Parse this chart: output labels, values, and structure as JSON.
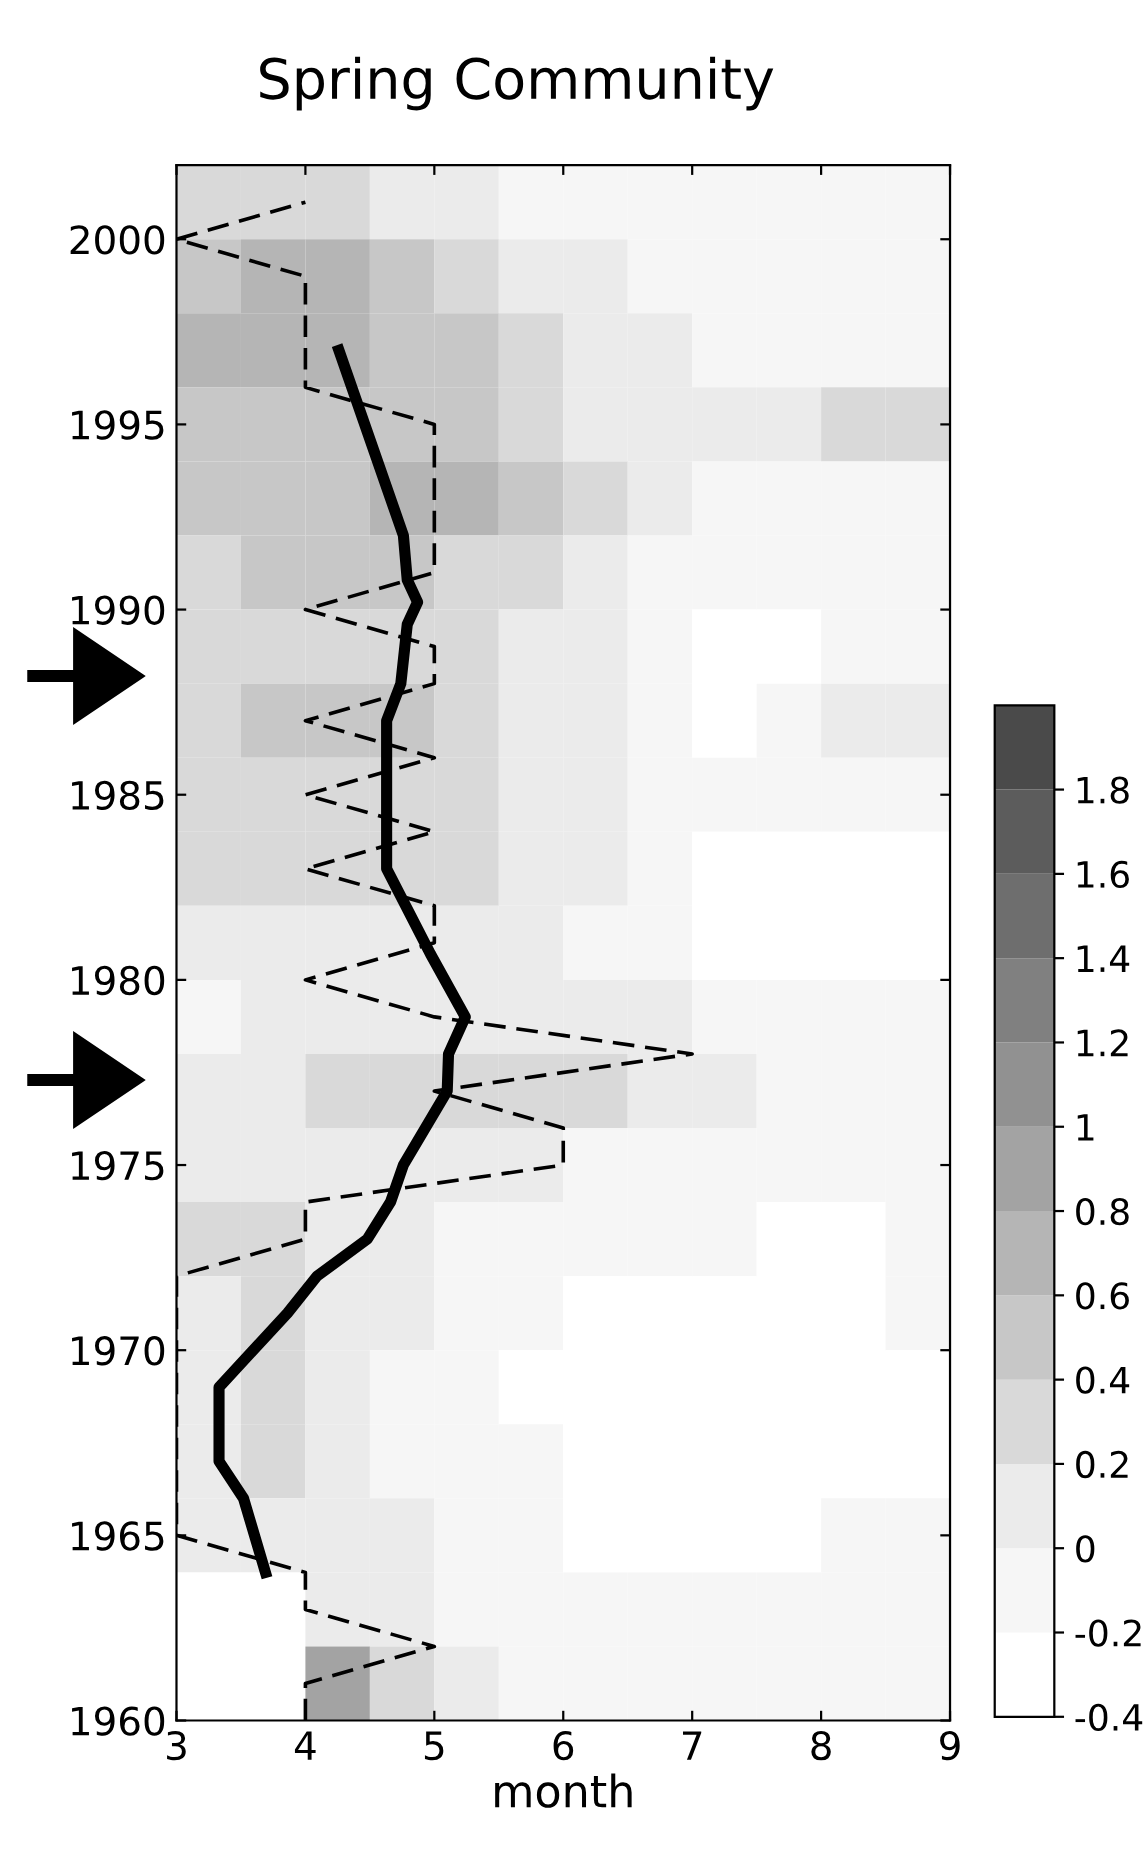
{
  "chart_data": [
    {
      "type": "line",
      "title": "Spring Community",
      "xlabel": "month",
      "xlim": [
        3,
        9
      ],
      "xticks": [
        3,
        4,
        5,
        6,
        7,
        8,
        9
      ],
      "ylim": [
        1960,
        2002
      ],
      "yticks": [
        1960,
        1965,
        1970,
        1975,
        1980,
        1985,
        1990,
        1995,
        2000
      ],
      "series": [
        {
          "type": "line",
          "color": "#000000",
          "line_style": "dashed",
          "x": [
            4,
            4,
            5,
            4,
            4,
            3,
            3,
            3,
            3,
            3,
            3,
            3,
            3,
            4,
            4,
            6,
            6,
            5,
            7,
            5,
            4,
            5,
            5,
            4,
            5,
            4,
            5,
            4,
            5,
            5,
            4,
            5,
            5,
            5,
            5,
            5,
            4,
            4,
            4,
            4,
            3,
            4
          ],
          "values": [
            1960,
            1961,
            1962,
            1963,
            1964,
            1965,
            1966,
            1967,
            1968,
            1969,
            1970,
            1971,
            1972,
            1973,
            1974,
            1975,
            1976,
            1977,
            1978,
            1979,
            1980,
            1981,
            1982,
            1983,
            1984,
            1985,
            1986,
            1987,
            1988,
            1989,
            1990,
            1991,
            1992,
            1993,
            1994,
            1995,
            1996,
            1997,
            1998,
            1999,
            2000,
            2001
          ]
        },
        {
          "type": "line",
          "color": "#000000",
          "line_style": "solid",
          "x": [
            3.69,
            3.52,
            3.33,
            3.33,
            3.86,
            4.09,
            4.48,
            4.66,
            4.76,
            5.1,
            5.11,
            5.24,
            4.97,
            4.63,
            4.63,
            4.74,
            4.79,
            4.87,
            4.79,
            4.76,
            4.26
          ],
          "values": [
            1964,
            1966,
            1967,
            1969,
            1971,
            1972,
            1973,
            1974,
            1975,
            1977,
            1978,
            1979,
            1980.7,
            1983,
            1987,
            1988,
            1989.6,
            1990.2,
            1990.8,
            1992,
            1997
          ]
        }
      ]
    },
    {
      "type": "heatmap",
      "clim": [
        -0.4,
        2.0
      ],
      "cticks": [
        -0.4,
        -0.2,
        0,
        0.2,
        0.4,
        0.6,
        0.8,
        1,
        1.2,
        1.4,
        1.6,
        1.8
      ],
      "categories": [
        null,
        null,
        null,
        null,
        null,
        null,
        null,
        null,
        null,
        null,
        null,
        null
      ],
      "y_categories": [
        null,
        null,
        null,
        null,
        null,
        null,
        null,
        null,
        null,
        null,
        null,
        null,
        null,
        null,
        null,
        null,
        null,
        null,
        null,
        null,
        null
      ],
      "cells": [
        [
          0.3,
          0.3,
          0.3,
          0.1,
          0.1,
          -0.1,
          -0.1,
          -0.1,
          -0.1,
          -0.1,
          -0.1,
          -0.1
        ],
        [
          0.5,
          0.7,
          0.7,
          0.5,
          0.3,
          0.1,
          0.1,
          -0.1,
          -0.1,
          -0.1,
          -0.1,
          -0.1
        ],
        [
          0.7,
          0.7,
          0.7,
          0.5,
          0.5,
          0.3,
          0.1,
          0.1,
          -0.1,
          -0.1,
          -0.1,
          -0.1
        ],
        [
          0.5,
          0.5,
          0.5,
          0.5,
          0.5,
          0.3,
          0.1,
          0.1,
          0.1,
          0.1,
          0.3,
          0.3
        ],
        [
          0.5,
          0.5,
          0.5,
          0.7,
          0.7,
          0.5,
          0.3,
          0.1,
          -0.1,
          -0.1,
          -0.1,
          -0.1
        ],
        [
          0.3,
          0.5,
          0.5,
          0.5,
          0.3,
          0.3,
          0.1,
          -0.1,
          -0.1,
          -0.1,
          -0.1,
          -0.1
        ],
        [
          0.3,
          0.3,
          0.3,
          0.3,
          0.3,
          0.1,
          0.1,
          -0.1,
          -0.3,
          -0.3,
          -0.1,
          -0.1
        ],
        [
          0.3,
          0.5,
          0.5,
          0.5,
          0.3,
          0.1,
          0.1,
          -0.1,
          -0.3,
          -0.1,
          0.1,
          0.1
        ],
        [
          0.3,
          0.3,
          0.3,
          0.3,
          0.3,
          0.1,
          0.1,
          -0.1,
          -0.1,
          -0.1,
          -0.1,
          -0.1
        ],
        [
          0.3,
          0.3,
          0.3,
          0.3,
          0.3,
          0.1,
          0.1,
          -0.1,
          -0.3,
          -0.3,
          -0.3,
          -0.3
        ],
        [
          0.1,
          0.1,
          0.1,
          0.1,
          0.1,
          0.1,
          -0.1,
          -0.1,
          -0.3,
          -0.3,
          -0.3,
          -0.3
        ],
        [
          -0.1,
          0.1,
          0.1,
          0.1,
          0.1,
          0.1,
          0.1,
          0.1,
          -0.1,
          -0.1,
          -0.1,
          -0.1
        ],
        [
          0.1,
          0.1,
          0.3,
          0.3,
          0.3,
          0.3,
          0.3,
          0.1,
          0.1,
          -0.1,
          -0.1,
          -0.1
        ],
        [
          0.1,
          0.1,
          0.1,
          0.1,
          0.1,
          0.1,
          -0.1,
          -0.1,
          -0.1,
          -0.1,
          -0.1,
          -0.1
        ],
        [
          0.3,
          0.3,
          0.1,
          0.1,
          -0.1,
          -0.1,
          -0.1,
          -0.1,
          -0.1,
          -0.3,
          -0.3,
          -0.1
        ],
        [
          0.1,
          0.3,
          0.1,
          0.1,
          -0.1,
          -0.1,
          -0.3,
          -0.3,
          -0.3,
          -0.3,
          -0.3,
          -0.1
        ],
        [
          0.1,
          0.3,
          0.1,
          -0.1,
          -0.1,
          -0.3,
          -0.3,
          -0.3,
          -0.3,
          -0.3,
          -0.3,
          -0.3
        ],
        [
          0.1,
          0.3,
          0.1,
          -0.1,
          -0.1,
          -0.1,
          -0.3,
          -0.3,
          -0.3,
          -0.3,
          -0.3,
          -0.3
        ],
        [
          0.1,
          0.1,
          0.1,
          0.1,
          -0.1,
          -0.1,
          -0.3,
          -0.3,
          -0.3,
          -0.3,
          -0.1,
          -0.1
        ],
        [
          null,
          null,
          0.1,
          0.1,
          -0.1,
          -0.1,
          -0.1,
          -0.1,
          -0.1,
          -0.1,
          -0.1,
          -0.1
        ],
        [
          null,
          null,
          0.9,
          0.3,
          0.1,
          -0.1,
          -0.1,
          -0.1,
          -0.1,
          -0.1,
          -0.1,
          -0.1
        ]
      ]
    }
  ]
}
